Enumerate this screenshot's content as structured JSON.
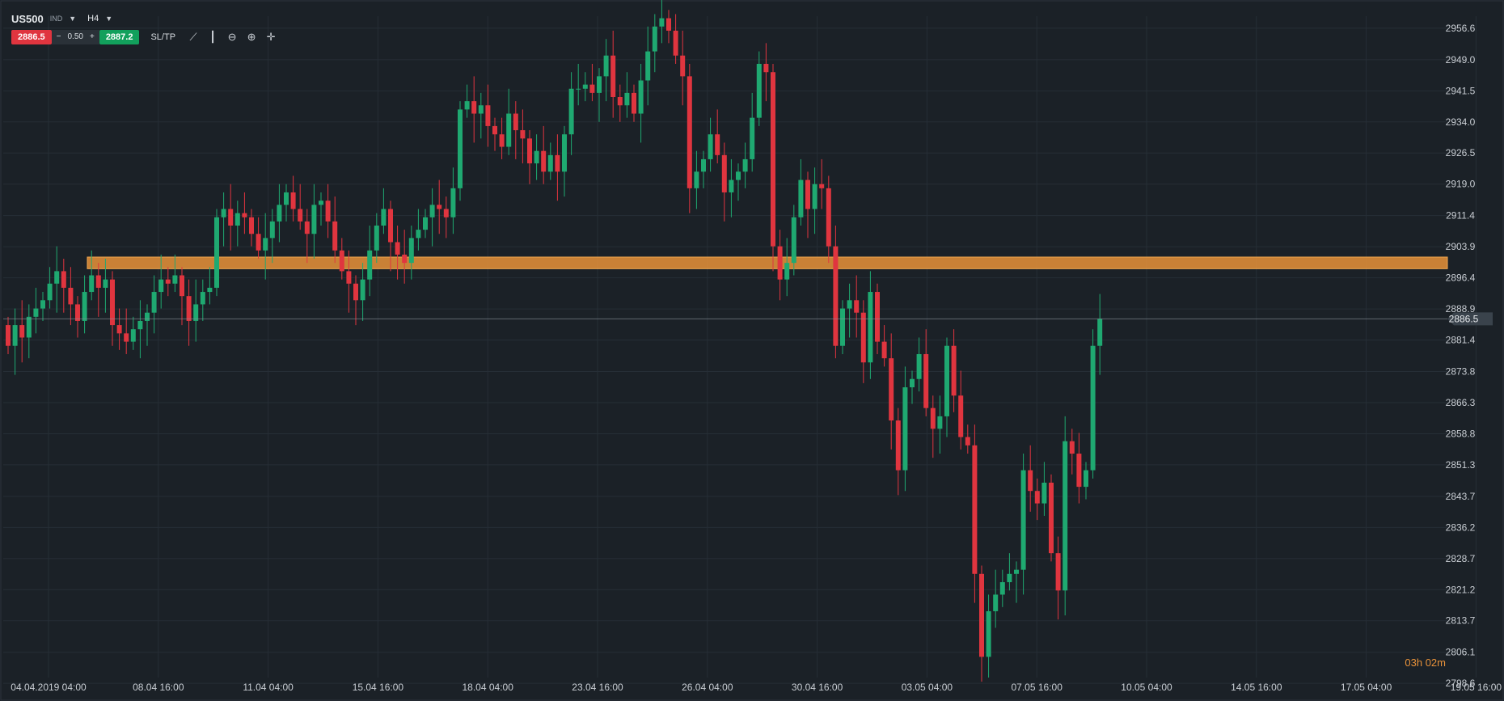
{
  "toolbar": {
    "symbol": "US500",
    "tag": "IND",
    "timeframe": "H4",
    "bid": "2886.5",
    "spread_minus": "−",
    "spread": "0.50",
    "spread_plus": "+",
    "ask": "2887.2",
    "sltp_label": "SL/TP",
    "icons": [
      "line-chart-icon",
      "candles-icon",
      "zoom-out-icon",
      "zoom-in-icon",
      "crosshair-icon"
    ]
  },
  "countdown": {
    "hours": "03",
    "h": "h",
    "minutes": "02",
    "m": "m"
  },
  "colors": {
    "background": "#1b2127",
    "up": "#1fa971",
    "down": "#e0353f",
    "zone": "#e8923a",
    "grid": "#262e36"
  },
  "chart_data": {
    "type": "candlestick",
    "title": "",
    "y_ticks": [
      2956.6,
      2949.0,
      2941.5,
      2934.0,
      2926.5,
      2919.0,
      2911.4,
      2903.9,
      2896.4,
      2888.9,
      2881.4,
      2873.8,
      2866.3,
      2858.8,
      2851.3,
      2843.7,
      2836.2,
      2828.7,
      2821.2,
      2813.7,
      2806.1,
      2798.6
    ],
    "x_ticks": [
      "04.04.2019 04:00",
      "08.04 16:00",
      "11.04 04:00",
      "15.04 16:00",
      "18.04 04:00",
      "23.04 16:00",
      "26.04 04:00",
      "30.04 16:00",
      "03.05 04:00",
      "07.05 16:00",
      "10.05 04:00",
      "14.05 16:00",
      "17.05 04:00",
      "19.05 16:00"
    ],
    "ylim": [
      2798.6,
      2960.0
    ],
    "current_price": 2886.5,
    "resistance_zone": [
      2898.6,
      2901.4
    ],
    "closes": [
      2880,
      2885,
      2882,
      2887,
      2889,
      2891,
      2895,
      2898,
      2894,
      2890,
      2886,
      2893,
      2897,
      2894,
      2896,
      2885,
      2883,
      2881,
      2884,
      2886,
      2888,
      2893,
      2896,
      2895,
      2897,
      2892,
      2886,
      2890,
      2893,
      2894,
      2911,
      2913,
      2909,
      2912,
      2911,
      2907,
      2903,
      2906,
      2910,
      2914,
      2917,
      2913,
      2910,
      2907,
      2914,
      2915,
      2910,
      2903,
      2898,
      2895,
      2891,
      2896,
      2903,
      2909,
      2913,
      2905,
      2902,
      2900,
      2906,
      2908,
      2911,
      2914,
      2913,
      2911,
      2918,
      2937,
      2939,
      2936,
      2938,
      2933,
      2931,
      2928,
      2936,
      2932,
      2930,
      2924,
      2927,
      2922,
      2926,
      2922,
      2931,
      2942,
      2942,
      2943,
      2941,
      2945,
      2950,
      2940,
      2938,
      2941,
      2936,
      2944,
      2951,
      2957,
      2959,
      2956,
      2950,
      2945,
      2918,
      2922,
      2925,
      2931,
      2926,
      2917,
      2920,
      2922,
      2925,
      2935,
      2948,
      2946,
      2904,
      2896,
      2900,
      2911,
      2920,
      2913,
      2919,
      2918,
      2904,
      2880,
      2889,
      2891,
      2888,
      2876,
      2893,
      2881,
      2877,
      2862,
      2850,
      2870,
      2872,
      2878,
      2865,
      2860,
      2863,
      2880,
      2868,
      2858,
      2856,
      2825,
      2805,
      2816,
      2820,
      2823,
      2825,
      2826,
      2850,
      2845,
      2842,
      2847,
      2830,
      2821,
      2857,
      2854,
      2846,
      2850,
      2880,
      2886.5
    ],
    "ohlc_note": ""
  }
}
